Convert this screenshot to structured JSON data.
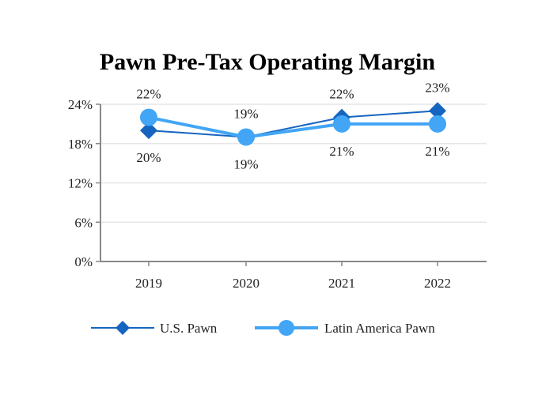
{
  "chart_data": {
    "type": "line",
    "title": "Pawn Pre-Tax Operating Margin",
    "categories": [
      "2019",
      "2020",
      "2021",
      "2022"
    ],
    "ylim": [
      0,
      24
    ],
    "yticks": [
      0,
      6,
      12,
      18,
      24
    ],
    "ytick_labels": [
      "0%",
      "6%",
      "12%",
      "18%",
      "24%"
    ],
    "grid": true,
    "legend_position": "bottom",
    "series": [
      {
        "name": "U.S. Pawn",
        "values": [
          20,
          19,
          22,
          23
        ],
        "labels": [
          "20%",
          "19%",
          "22%",
          "23%"
        ],
        "label_side": [
          "below",
          "below",
          "above",
          "above"
        ],
        "color": "#1565c0",
        "marker": "diamond"
      },
      {
        "name": "Latin America Pawn",
        "values": [
          22,
          19,
          21,
          21
        ],
        "labels": [
          "22%",
          "19%",
          "21%",
          "21%"
        ],
        "label_side": [
          "above",
          "above",
          "below",
          "below"
        ],
        "color": "#42a5f5",
        "marker": "circle"
      }
    ]
  }
}
